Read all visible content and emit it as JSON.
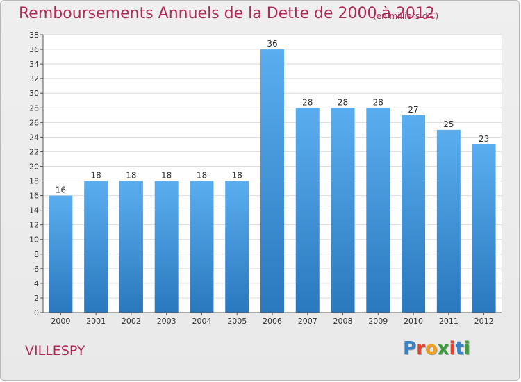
{
  "chart_data": {
    "type": "bar",
    "title": "Remboursements Annuels de la Dette de 2000 à 2012",
    "subtitle": "(en milliers d'€)",
    "categories": [
      "2000",
      "2001",
      "2002",
      "2003",
      "2004",
      "2005",
      "2006",
      "2007",
      "2008",
      "2009",
      "2010",
      "2011",
      "2012"
    ],
    "values": [
      16,
      18,
      18,
      18,
      18,
      18,
      36,
      28,
      28,
      28,
      27,
      25,
      23
    ],
    "xlabel": "",
    "ylabel": "",
    "ylim": [
      0,
      38
    ],
    "yticks": [
      0,
      2,
      4,
      6,
      8,
      10,
      12,
      14,
      16,
      18,
      20,
      22,
      24,
      26,
      28,
      30,
      32,
      34,
      36,
      38
    ],
    "grid": true,
    "bar_color": "#3a8fd8"
  },
  "footer": {
    "city": "VILLESPY",
    "logo": "Proxiti"
  },
  "colors": {
    "title": "#b0295a",
    "logo_letters": [
      "#3b82c4",
      "#e8412c",
      "#f0a020",
      "#3a9d3a",
      "#e8412c",
      "#3b82c4",
      "#3a9d3a"
    ]
  }
}
